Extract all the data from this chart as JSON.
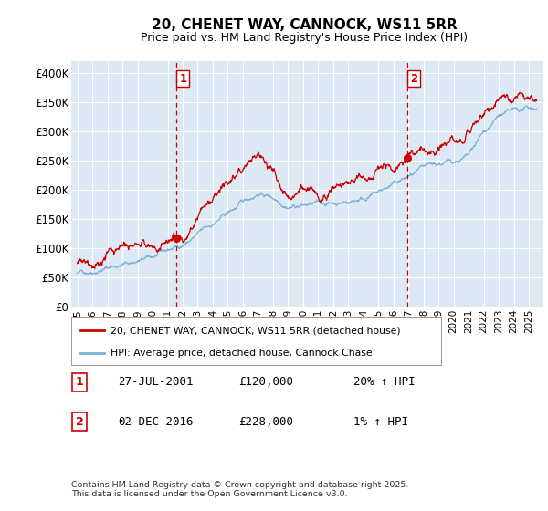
{
  "title": "20, CHENET WAY, CANNOCK, WS11 5RR",
  "subtitle": "Price paid vs. HM Land Registry's House Price Index (HPI)",
  "ylim": [
    0,
    420000
  ],
  "yticks": [
    0,
    50000,
    100000,
    150000,
    200000,
    250000,
    300000,
    350000,
    400000
  ],
  "ytick_labels": [
    "£0",
    "£50K",
    "£100K",
    "£150K",
    "£200K",
    "£250K",
    "£300K",
    "£350K",
    "£400K"
  ],
  "background_color": "#ffffff",
  "plot_bg_color": "#dce9f5",
  "grid_color": "#ffffff",
  "line1_color": "#cc0000",
  "line2_color": "#7ab0d4",
  "vline_color": "#cc0000",
  "marker1_x": 2001.57,
  "marker2_x": 2016.92,
  "legend_line1": "20, CHENET WAY, CANNOCK, WS11 5RR (detached house)",
  "legend_line2": "HPI: Average price, detached house, Cannock Chase",
  "annotation1_date": "27-JUL-2001",
  "annotation1_price": "£120,000",
  "annotation1_hpi": "20% ↑ HPI",
  "annotation2_date": "02-DEC-2016",
  "annotation2_price": "£228,000",
  "annotation2_hpi": "1% ↑ HPI",
  "footer": "Contains HM Land Registry data © Crown copyright and database right 2025.\nThis data is licensed under the Open Government Licence v3.0.",
  "title_fontsize": 11,
  "subtitle_fontsize": 9,
  "tick_fontsize": 8.5,
  "xstart": 1995,
  "xend": 2025.5
}
